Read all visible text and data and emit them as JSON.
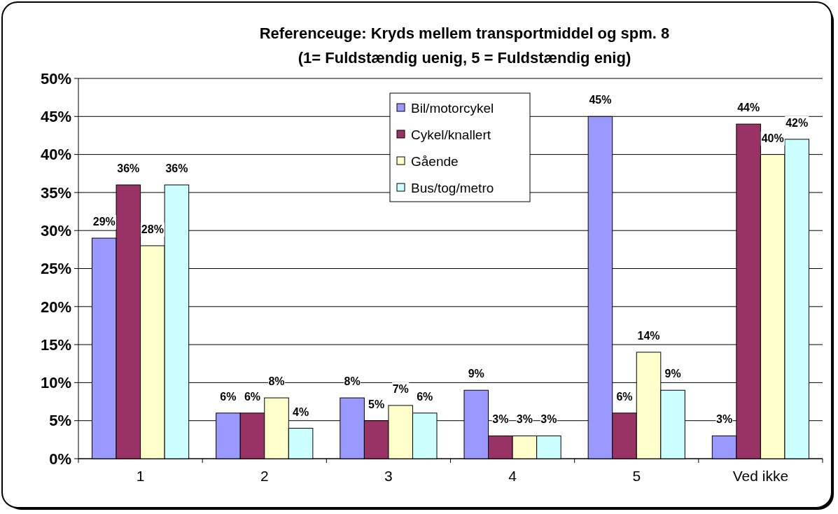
{
  "chart_data": {
    "type": "bar",
    "title": "Referenceuge: Kryds mellem transportmiddel og spm. 8",
    "subtitle": "(1= Fuldstændig uenig, 5 = Fuldstændig enig)",
    "categories": [
      "1",
      "2",
      "3",
      "4",
      "5",
      "Ved ikke"
    ],
    "series": [
      {
        "name": "Bil/motorcykel",
        "color": "#9999ff",
        "values": [
          29,
          6,
          8,
          9,
          45,
          3
        ],
        "value_labels": [
          "29%",
          "6%",
          "8%",
          "9%",
          "45%",
          "3%"
        ]
      },
      {
        "name": "Cykel/knallert",
        "color": "#993366",
        "values": [
          36,
          6,
          5,
          3,
          6,
          44
        ],
        "value_labels": [
          "36%",
          "6%",
          "5%",
          "3%",
          "6%",
          "44%"
        ]
      },
      {
        "name": "Gående",
        "color": "#ffffcc",
        "values": [
          28,
          8,
          7,
          3,
          14,
          40
        ],
        "value_labels": [
          "28%",
          "8%",
          "7%",
          "3%",
          "14%",
          "40%"
        ]
      },
      {
        "name": "Bus/tog/metro",
        "color": "#ccffff",
        "values": [
          36,
          4,
          6,
          3,
          9,
          42
        ],
        "value_labels": [
          "36%",
          "4%",
          "6%",
          "3%",
          "9%",
          "42%"
        ]
      }
    ],
    "ylim": [
      0,
      50
    ],
    "yticks": [
      {
        "value": 0,
        "label": "0%"
      },
      {
        "value": 5,
        "label": "5%"
      },
      {
        "value": 10,
        "label": "10%"
      },
      {
        "value": 15,
        "label": "15%"
      },
      {
        "value": 20,
        "label": "20%"
      },
      {
        "value": 25,
        "label": "25%"
      },
      {
        "value": 30,
        "label": "30%"
      },
      {
        "value": 35,
        "label": "35%"
      },
      {
        "value": 40,
        "label": "40%"
      },
      {
        "value": 45,
        "label": "45%"
      },
      {
        "value": 50,
        "label": "50%"
      }
    ],
    "grid": "y",
    "legend": "top"
  }
}
